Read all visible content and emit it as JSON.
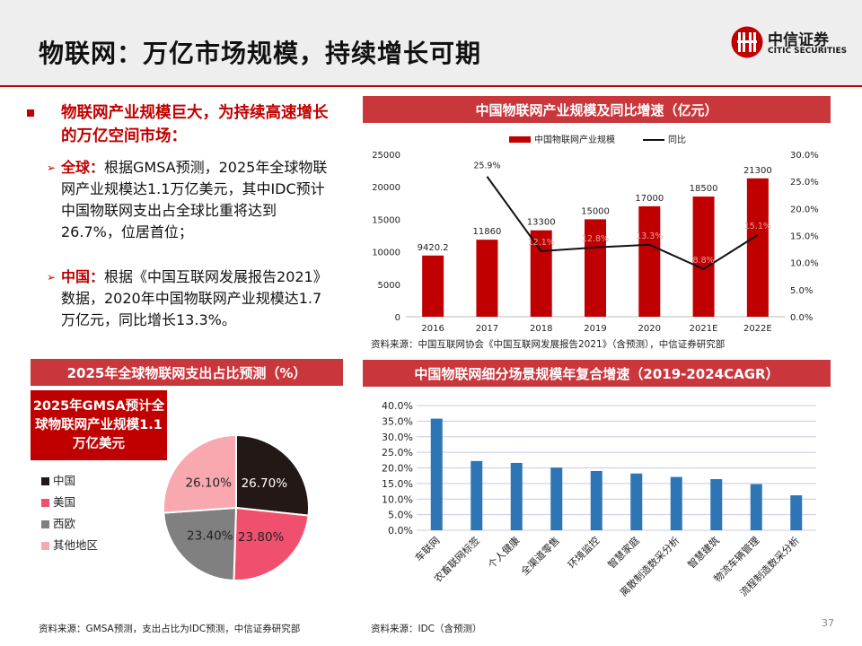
{
  "header": {
    "title": "物联网：万亿市场规模，持续增长可期",
    "logo_cn": "中信证券",
    "logo_en": "CITIC SECURITIES"
  },
  "left_text": {
    "main_bullet": "物联网产业规模巨大，为持续高速增长的万亿空间市场：",
    "sub1_keyword": "全球：",
    "sub1_text": "根据GMSA预测，2025年全球物联网产业规模达1.1万亿美元，其中IDC预计中国物联网支出占全球比重将达到26.7%，位居首位；",
    "sub2_keyword": "中国：",
    "sub2_text": "根据《中国互联网发展报告2021》数据，2020年中国物联网产业规模达1.7万亿元，同比增长13.3%。"
  },
  "colors": {
    "brand_red": "#c00000",
    "banner_red": "#c9373d",
    "bar_red": "#c00000",
    "bar_blue": "#2e75b6",
    "pie_china": "#231815",
    "pie_us": "#f0506e",
    "pie_eu": "#808080",
    "pie_other": "#f8a8ae"
  },
  "chart1": {
    "title": "中国物联网产业规模及同比增速（亿元）",
    "source": "资料来源：中国互联网协会《中国互联网发展报告2021》（含预测），中信证券研究部"
  },
  "chart2": {
    "title": "2025年全球物联网支出占比预测（%）",
    "note": "2025年GMSA预计全球物联网产业规模1.1万亿美元",
    "source": "资料来源：GMSA预测，支出占比为IDC预测，中信证券研究部"
  },
  "chart3": {
    "title": "中国物联网细分场景规模年复合增速（2019-2024CAGR）",
    "source": "资料来源：IDC（含预测）"
  },
  "page_number": "37",
  "chart_data": [
    {
      "type": "bar",
      "categories": [
        "2016",
        "2017",
        "2018",
        "2019",
        "2020",
        "2021E",
        "2022E"
      ],
      "series": [
        {
          "name": "中国物联网产业规模",
          "values": [
            9420.2,
            11860,
            13300,
            15000,
            17000,
            18500,
            21300
          ],
          "axis": "left"
        },
        {
          "name": "同比",
          "type": "line",
          "values": [
            null,
            25.9,
            12.1,
            12.8,
            13.3,
            8.8,
            15.1
          ],
          "axis": "right"
        }
      ],
      "data_labels": [
        "9420.2",
        "11860",
        "13300",
        "15000",
        "17000",
        "18500",
        "21300"
      ],
      "line_labels": [
        "",
        "25.9%",
        "12.1%",
        "12.8%",
        "13.3%",
        "8.8%",
        "15.1%"
      ],
      "ylim": [
        0,
        25000
      ],
      "yticks": [
        "0",
        "5000",
        "10000",
        "15000",
        "20000",
        "25000"
      ],
      "y2lim": [
        0,
        30
      ],
      "y2ticks": [
        "0.0%",
        "5.0%",
        "10.0%",
        "15.0%",
        "20.0%",
        "25.0%",
        "30.0%"
      ],
      "legend": "top"
    },
    {
      "type": "pie",
      "labels": [
        "中国",
        "美国",
        "西欧",
        "其他地区"
      ],
      "values": [
        26.7,
        23.8,
        23.4,
        26.1
      ],
      "value_labels": [
        "26.70%",
        "23.80%",
        "23.40%",
        "26.10%"
      ],
      "legend": "left"
    },
    {
      "type": "bar",
      "categories": [
        "车联网",
        "农畜联网标签",
        "个人健康",
        "全渠道零售",
        "环境监控",
        "智慧家庭",
        "离散制造数采分析",
        "智慧建筑",
        "物流车辆管理",
        "流程制造数采分析"
      ],
      "values": [
        35.8,
        22.2,
        21.6,
        20.1,
        19.0,
        18.2,
        17.1,
        16.4,
        14.8,
        11.2
      ],
      "ylim": [
        0,
        40
      ],
      "yticks": [
        "0.0%",
        "5.0%",
        "10.0%",
        "15.0%",
        "20.0%",
        "25.0%",
        "30.0%",
        "35.0%",
        "40.0%"
      ]
    }
  ]
}
